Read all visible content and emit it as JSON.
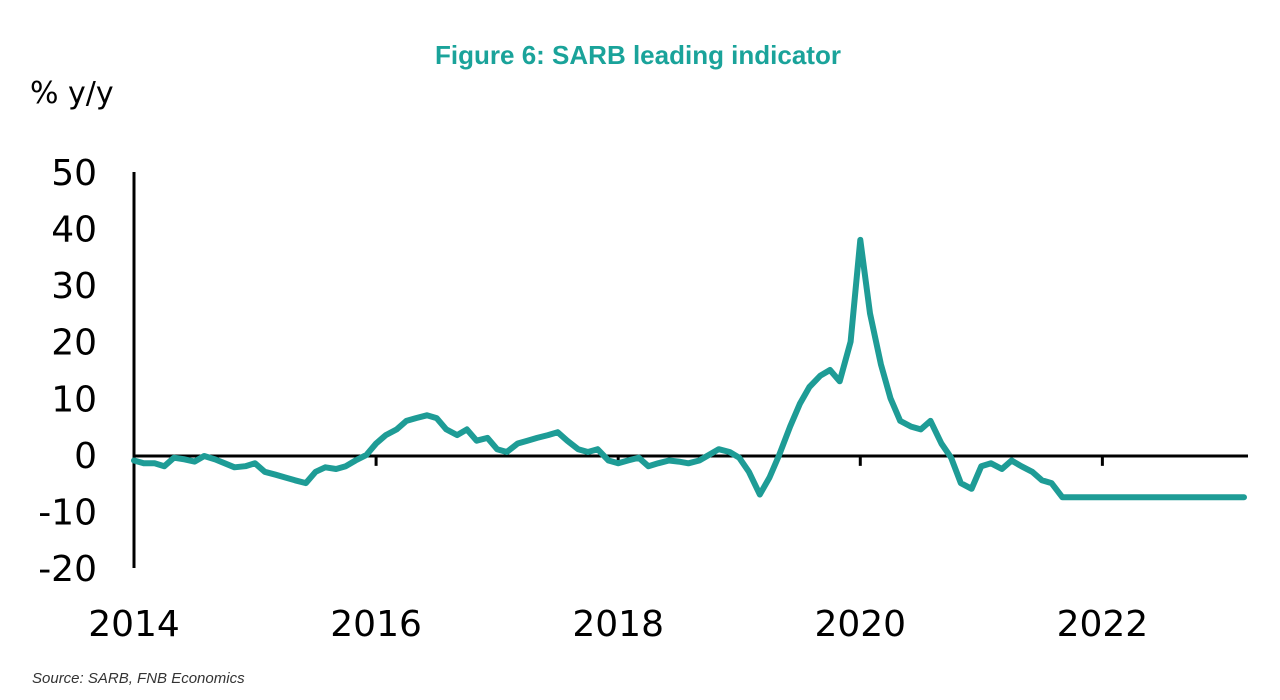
{
  "chart_data": {
    "type": "line",
    "title": "Figure 6: SARB leading indicator",
    "ylabel": "% y/y",
    "xlabel": "",
    "source": "Source: SARB, FNB Economics",
    "xlim": [
      2014,
      2023.17
    ],
    "ylim": [
      -20,
      50
    ],
    "y_ticks": [
      50,
      40,
      30,
      20,
      10,
      0,
      -10,
      -20
    ],
    "x_ticks": [
      2014,
      2016,
      2018,
      2020,
      2022
    ],
    "grid": false,
    "legend": "none",
    "line_color": "#1e9c96",
    "title_color": "#1aa39a",
    "series": [
      {
        "x": [
          2014.0,
          2014.08,
          2014.17,
          2014.25,
          2014.33,
          2014.42,
          2014.5,
          2014.58,
          2014.67,
          2014.75,
          2014.83,
          2014.92,
          2015.0,
          2015.08,
          2015.17,
          2015.25,
          2015.33,
          2015.42,
          2015.5,
          2015.58,
          2015.67,
          2015.75,
          2015.83,
          2015.92,
          2016.0,
          2016.08,
          2016.17,
          2016.25,
          2016.33,
          2016.42,
          2016.5,
          2016.58,
          2016.67,
          2016.75,
          2016.83,
          2016.92,
          2017.0,
          2017.08,
          2017.17,
          2017.25,
          2017.33,
          2017.42,
          2017.5,
          2017.58,
          2017.67,
          2017.75,
          2017.83,
          2017.92,
          2018.0,
          2018.08,
          2018.17,
          2018.25,
          2018.33,
          2018.42,
          2018.5,
          2018.58,
          2018.67,
          2018.75,
          2018.83,
          2018.92,
          2019.0,
          2019.08,
          2019.17,
          2019.25,
          2019.33,
          2019.42,
          2019.5,
          2019.58,
          2019.67,
          2019.75,
          2019.83,
          2019.92,
          2020.0,
          2020.08,
          2020.17,
          2020.25,
          2020.33,
          2020.42,
          2020.5,
          2020.58,
          2020.67,
          2020.75,
          2020.83,
          2020.92,
          2021.0,
          2021.08,
          2021.17,
          2021.25,
          2021.33,
          2021.42,
          2021.5,
          2021.58,
          2021.67,
          2021.75,
          2021.83,
          2021.92,
          2022.0,
          2022.08,
          2022.17,
          2022.25,
          2022.33,
          2022.42,
          2022.5,
          2022.58,
          2022.67,
          2022.75,
          2022.83,
          2022.92,
          2023.0,
          2023.08,
          2023.17
        ],
        "values": [
          -1,
          -1.5,
          -1.5,
          -2,
          -0.5,
          -0.8,
          -1.2,
          -0.2,
          -0.8,
          -1.5,
          -2.2,
          -2,
          -1.5,
          -3,
          -3.5,
          -4,
          -4.5,
          -5,
          -3,
          -2.2,
          -2.5,
          -2,
          -1,
          0,
          2,
          3.5,
          4.5,
          6,
          6.5,
          7,
          6.5,
          4.5,
          3.5,
          4.5,
          2.5,
          3,
          1,
          0.5,
          2,
          2.5,
          3,
          3.5,
          4,
          2.5,
          1,
          0.5,
          1,
          -1,
          -1.5,
          -1,
          -0.5,
          -2,
          -1.5,
          -1,
          -1.2,
          -1.5,
          -1,
          0,
          1,
          0.5,
          -0.5,
          -3,
          -7,
          -4,
          0,
          5,
          9,
          12,
          14,
          15,
          13,
          20,
          38,
          25,
          16,
          10,
          6,
          5,
          4.5,
          6,
          2,
          -0.5,
          -5,
          -6,
          -2,
          -1.5,
          -2.5,
          -1,
          -2,
          -3,
          -4.5,
          -5,
          -7.5,
          -7.5,
          -7.5,
          -7.5,
          -7.5,
          -7.5,
          -7.5,
          -7.5,
          -7.5,
          -7.5,
          -7.5,
          -7.5,
          -7.5,
          -7.5,
          -7.5,
          -7.5,
          -7.5,
          -7.5,
          -7.5
        ]
      }
    ]
  }
}
